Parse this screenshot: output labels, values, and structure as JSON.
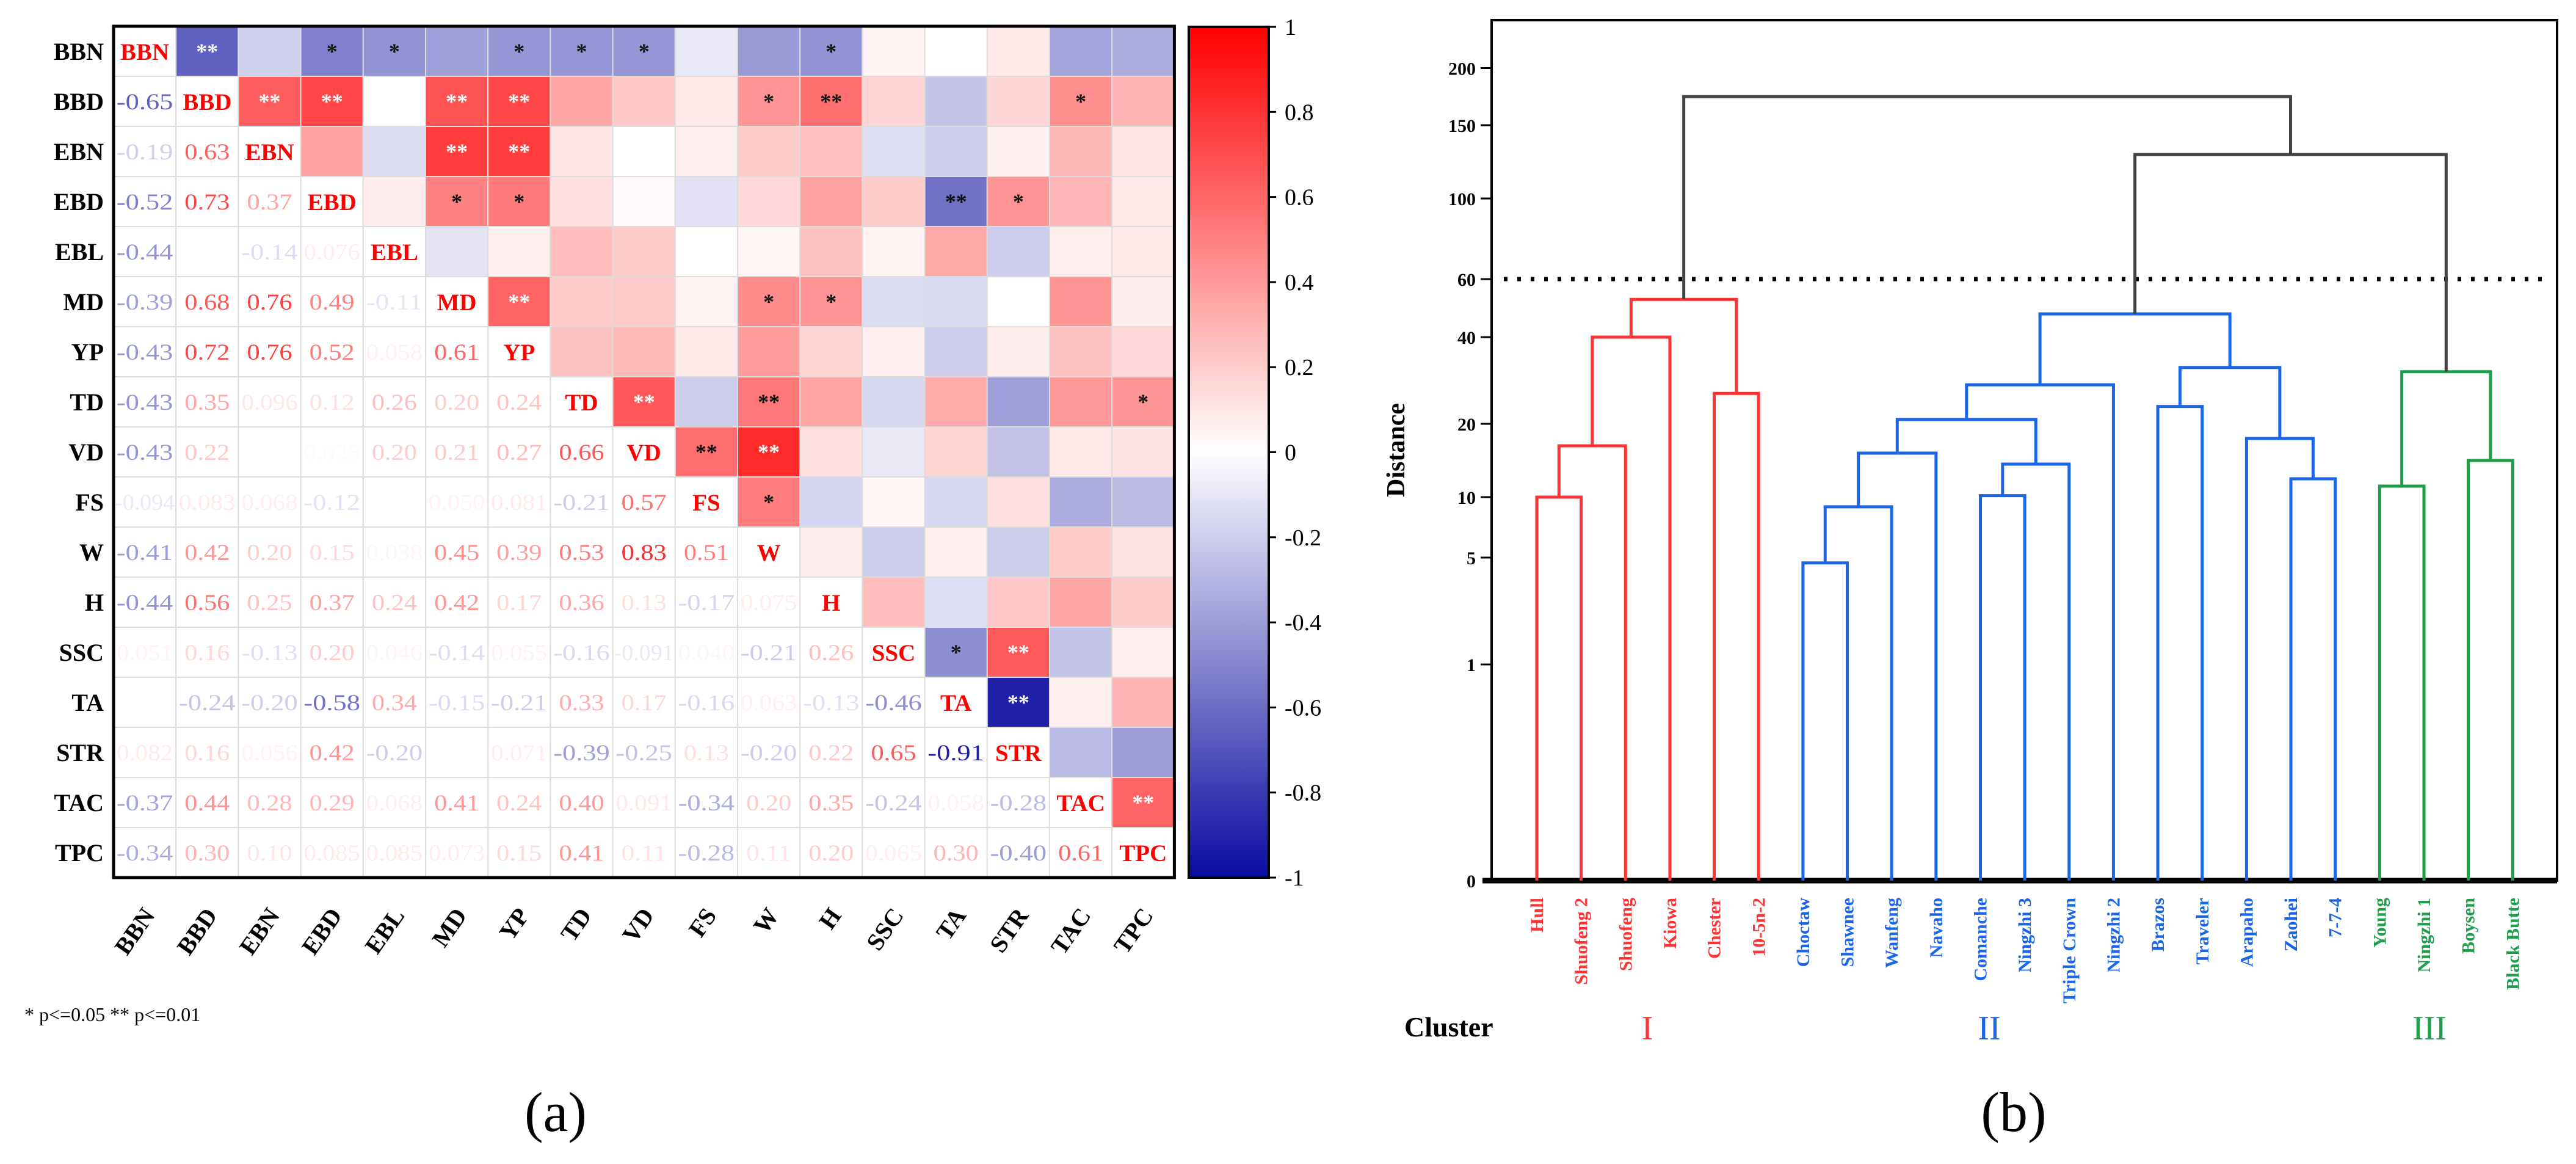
{
  "chart_data": [
    {
      "type": "heatmap",
      "title": "",
      "panel_label": "(a)",
      "variables": [
        "BBN",
        "BBD",
        "EBN",
        "EBD",
        "EBL",
        "MD",
        "YP",
        "TD",
        "VD",
        "FS",
        "W",
        "H",
        "SSC",
        "TA",
        "STR",
        "TAC",
        "TPC"
      ],
      "lower_triangle": [
        [],
        [
          "-0.65"
        ],
        [
          "-0.19",
          "0.63"
        ],
        [
          "-0.52",
          "0.73",
          "0.37"
        ],
        [
          "-0.44",
          null,
          "-0.14",
          "0.076"
        ],
        [
          "-0.39",
          "0.68",
          "0.76",
          "0.49",
          "-0.11"
        ],
        [
          "-0.43",
          "0.72",
          "0.76",
          "0.52",
          "0.058",
          "0.61"
        ],
        [
          "-0.43",
          "0.35",
          "0.096",
          "0.12",
          "0.26",
          "0.20",
          "0.24"
        ],
        [
          "-0.43",
          "0.22",
          null,
          "0.025",
          "0.20",
          "0.21",
          "0.27",
          "0.66"
        ],
        [
          "-0.094",
          "0.083",
          "0.068",
          "-0.12",
          null,
          "0.050",
          "0.081",
          "-0.21",
          "0.57"
        ],
        [
          "-0.41",
          "0.42",
          "0.20",
          "0.15",
          "0.038",
          "0.45",
          "0.39",
          "0.53",
          "0.83",
          "0.51"
        ],
        [
          "-0.44",
          "0.56",
          "0.25",
          "0.37",
          "0.24",
          "0.42",
          "0.17",
          "0.36",
          "0.13",
          "-0.17",
          "0.075"
        ],
        [
          "0.051",
          "0.16",
          "-0.13",
          "0.20",
          "0.046",
          "-0.14",
          "0.055",
          "-0.16",
          "-0.091",
          "0.040",
          "-0.21",
          "0.26"
        ],
        [
          null,
          "-0.24",
          "-0.20",
          "-0.58",
          "0.34",
          "-0.15",
          "-0.21",
          "0.33",
          "0.17",
          "-0.16",
          "0.063",
          "-0.13",
          "-0.46"
        ],
        [
          "0.082",
          "0.16",
          "0.056",
          "0.42",
          "-0.20",
          null,
          "0.071",
          "-0.39",
          "-0.25",
          "0.13",
          "-0.20",
          "0.22",
          "0.65",
          "-0.91"
        ],
        [
          "-0.37",
          "0.44",
          "0.28",
          "0.29",
          "0.068",
          "0.41",
          "0.24",
          "0.40",
          "0.091",
          "-0.34",
          "0.20",
          "0.35",
          "-0.24",
          "0.058",
          "-0.28"
        ],
        [
          "-0.34",
          "0.30",
          "0.10",
          "0.085",
          "0.085",
          "0.073",
          "0.15",
          "0.41",
          "0.11",
          "-0.28",
          "0.11",
          "0.20",
          "0.065",
          "0.30",
          "-0.40",
          "0.61"
        ]
      ],
      "significance": [
        {
          "row": 0,
          "col": 1,
          "mark": "**"
        },
        {
          "row": 0,
          "col": 3,
          "mark": "*"
        },
        {
          "row": 0,
          "col": 4,
          "mark": "*"
        },
        {
          "row": 0,
          "col": 6,
          "mark": "*"
        },
        {
          "row": 0,
          "col": 7,
          "mark": "*"
        },
        {
          "row": 0,
          "col": 8,
          "mark": "*"
        },
        {
          "row": 0,
          "col": 11,
          "mark": "*"
        },
        {
          "row": 1,
          "col": 2,
          "mark": "**"
        },
        {
          "row": 1,
          "col": 3,
          "mark": "**"
        },
        {
          "row": 1,
          "col": 5,
          "mark": "**"
        },
        {
          "row": 1,
          "col": 6,
          "mark": "**"
        },
        {
          "row": 1,
          "col": 10,
          "mark": "*"
        },
        {
          "row": 1,
          "col": 11,
          "mark": "**"
        },
        {
          "row": 1,
          "col": 15,
          "mark": "*"
        },
        {
          "row": 2,
          "col": 5,
          "mark": "**"
        },
        {
          "row": 2,
          "col": 6,
          "mark": "**"
        },
        {
          "row": 3,
          "col": 5,
          "mark": "*"
        },
        {
          "row": 3,
          "col": 6,
          "mark": "*"
        },
        {
          "row": 3,
          "col": 13,
          "mark": "**"
        },
        {
          "row": 3,
          "col": 14,
          "mark": "*"
        },
        {
          "row": 5,
          "col": 6,
          "mark": "**"
        },
        {
          "row": 5,
          "col": 10,
          "mark": "*"
        },
        {
          "row": 5,
          "col": 11,
          "mark": "*"
        },
        {
          "row": 7,
          "col": 8,
          "mark": "**"
        },
        {
          "row": 7,
          "col": 10,
          "mark": "**"
        },
        {
          "row": 7,
          "col": 16,
          "mark": "*"
        },
        {
          "row": 8,
          "col": 9,
          "mark": "**"
        },
        {
          "row": 8,
          "col": 10,
          "mark": "**"
        },
        {
          "row": 9,
          "col": 10,
          "mark": "*"
        },
        {
          "row": 12,
          "col": 13,
          "mark": "*"
        },
        {
          "row": 12,
          "col": 14,
          "mark": "**"
        },
        {
          "row": 13,
          "col": 14,
          "mark": "**"
        },
        {
          "row": 15,
          "col": 16,
          "mark": "**"
        }
      ],
      "colorbar": {
        "range": [
          -1,
          1
        ],
        "ticks": [
          "1",
          "0.8",
          "0.6",
          "0.4",
          "0.2",
          "0",
          "-0.2",
          "-0.4",
          "-0.6",
          "-0.8",
          "-1"
        ],
        "low_color": "#0a0aa0",
        "mid_color": "#ffffff",
        "high_color": "#ff0000"
      },
      "footnote": "* p<=0.05  ** p<=0.01"
    },
    {
      "type": "dendrogram",
      "panel_label": "(b)",
      "ylabel": "Distance",
      "yticks": [
        0,
        1,
        5,
        10,
        20,
        40,
        60,
        100,
        150,
        200
      ],
      "ytick_labels": [
        "0",
        "1",
        "5",
        "10",
        "20",
        "40",
        "60",
        "100",
        "150",
        "200"
      ],
      "cut_threshold": 60,
      "leaves": [
        "Hull",
        "Shuofeng 2",
        "Shuofeng",
        "Kiowa",
        "Chester",
        "10-5n-2",
        "Choctaw",
        "Shawnee",
        "Wanfeng",
        "Navaho",
        "Comanche",
        "Ningzhi 3",
        "Triple Crown",
        "Ningzhi 2",
        "Brazos",
        "Traveler",
        "Arapaho",
        "Zaohei",
        "7-7-4",
        "Young",
        "Ningzhi 1",
        "Boysen",
        "Black Butte"
      ],
      "leaf_cluster": [
        0,
        0,
        0,
        0,
        0,
        0,
        1,
        1,
        1,
        1,
        1,
        1,
        1,
        1,
        1,
        1,
        1,
        1,
        1,
        2,
        2,
        2,
        2
      ],
      "merges": [
        {
          "a": 0,
          "b": 1,
          "height": 10,
          "cluster": 0
        },
        {
          "a": 23,
          "b": 2,
          "height": 17,
          "cluster": 0
        },
        {
          "a": 24,
          "b": 3,
          "height": 40,
          "cluster": 0
        },
        {
          "a": 4,
          "b": 5,
          "height": 27,
          "cluster": 0
        },
        {
          "a": 25,
          "b": 26,
          "height": 53,
          "cluster": 0
        },
        {
          "a": 6,
          "b": 7,
          "height": 4.8,
          "cluster": 1
        },
        {
          "a": 28,
          "b": 8,
          "height": 9.2,
          "cluster": 1
        },
        {
          "a": 29,
          "b": 9,
          "height": 16,
          "cluster": 1
        },
        {
          "a": 10,
          "b": 11,
          "height": 10.2,
          "cluster": 1
        },
        {
          "a": 31,
          "b": 12,
          "height": 14.5,
          "cluster": 1
        },
        {
          "a": 30,
          "b": 32,
          "height": 21,
          "cluster": 1
        },
        {
          "a": 33,
          "b": 13,
          "height": 29,
          "cluster": 1
        },
        {
          "a": 14,
          "b": 15,
          "height": 24,
          "cluster": 1
        },
        {
          "a": 17,
          "b": 18,
          "height": 12.5,
          "cluster": 1
        },
        {
          "a": 16,
          "b": 36,
          "height": 18,
          "cluster": 1
        },
        {
          "a": 35,
          "b": 37,
          "height": 33,
          "cluster": 1
        },
        {
          "a": 34,
          "b": 38,
          "height": 48,
          "cluster": 1
        },
        {
          "a": 19,
          "b": 20,
          "height": 11.5,
          "cluster": 2
        },
        {
          "a": 21,
          "b": 22,
          "height": 15,
          "cluster": 2
        },
        {
          "a": 40,
          "b": 41,
          "height": 32,
          "cluster": 2
        },
        {
          "a": 39,
          "b": 42,
          "height": 130,
          "cluster": 3
        },
        {
          "a": 27,
          "b": 43,
          "height": 175,
          "cluster": 3
        }
      ],
      "cluster_title": "Cluster",
      "clusters": [
        {
          "label": "I",
          "color": "#ff3333"
        },
        {
          "label": "II",
          "color": "#1a66e6"
        },
        {
          "label": "III",
          "color": "#1e9e4a"
        },
        {
          "label": "",
          "color": "#444444"
        }
      ]
    }
  ]
}
